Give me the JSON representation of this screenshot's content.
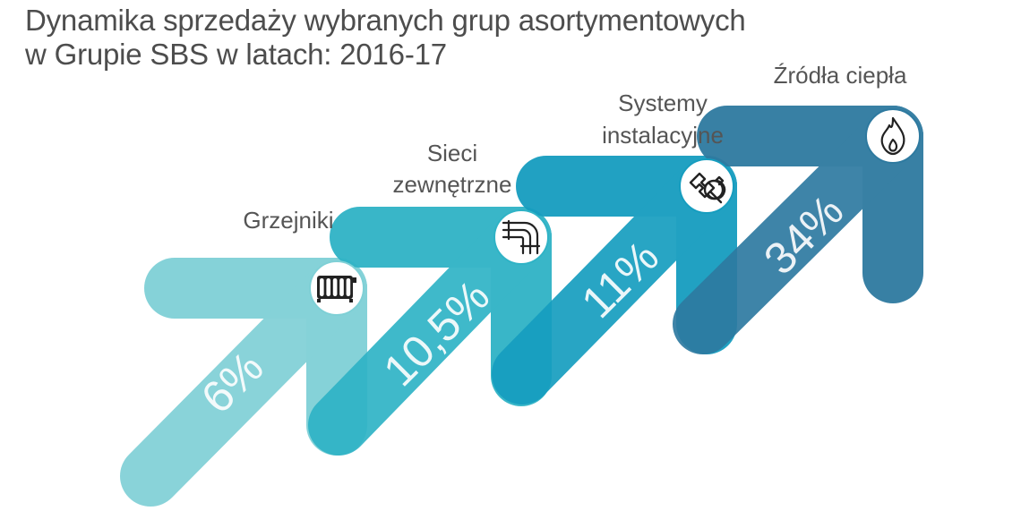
{
  "title": {
    "line1": "Dynamika sprzedaży wybranych grup asortymentowych",
    "line2": "w Grupie SBS w latach: 2016-17"
  },
  "chart_data": {
    "type": "bar",
    "title": "Dynamika sprzedaży wybranych grup asortymentowych w Grupie SBS w latach: 2016-17",
    "categories": [
      "Grzejniki",
      "Sieci zewnętrzne",
      "Systemy instalacyjne",
      "Źródła ciepła"
    ],
    "category_lines": [
      [
        "Grzejniki"
      ],
      [
        "Sieci",
        "zewnętrzne"
      ],
      [
        "Systemy",
        "instalacyjne"
      ],
      [
        "Źródła ciepła"
      ]
    ],
    "values": [
      6,
      10.5,
      11,
      34
    ],
    "value_labels": [
      "6%",
      "10,5%",
      "11%",
      "34%"
    ],
    "unit": "%",
    "icons": [
      "radiator-icon",
      "pipes-icon",
      "wrench-icon",
      "flame-icon"
    ],
    "colors": [
      "#7fd0d6",
      "#2fb3c6",
      "#169dbf",
      "#2e7aa0"
    ],
    "grid": false,
    "legend": "none"
  }
}
